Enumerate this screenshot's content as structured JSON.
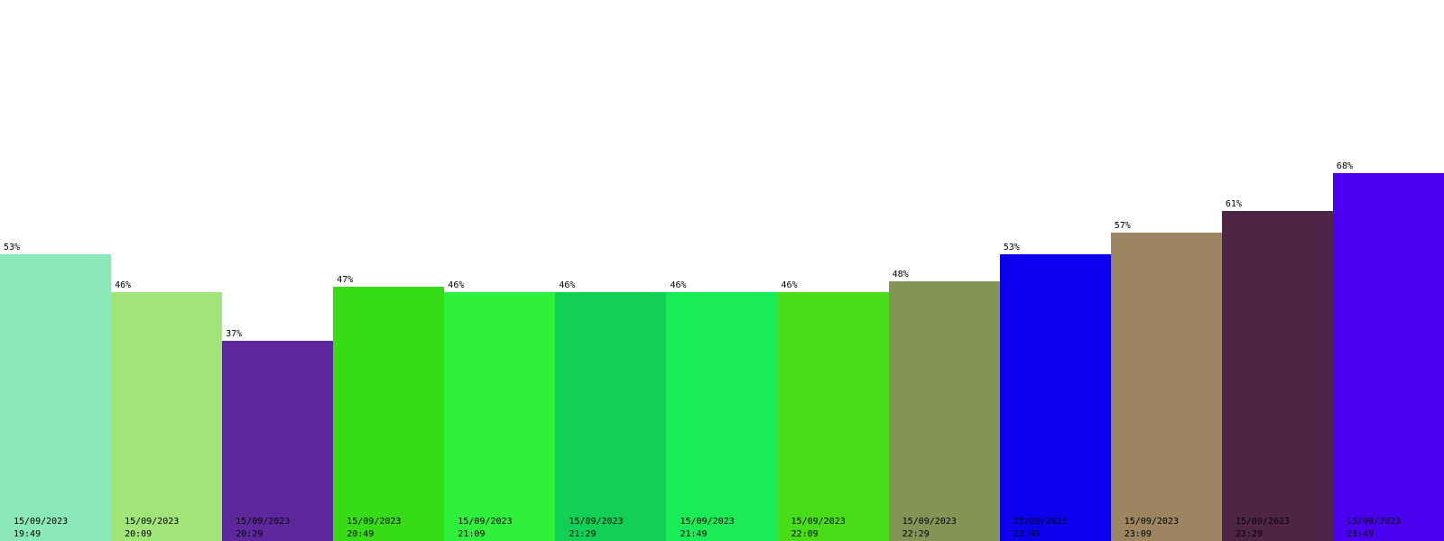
{
  "chart_data": {
    "type": "bar",
    "title": "",
    "xlabel": "",
    "ylabel": "",
    "ylim": [
      0,
      100
    ],
    "grid": false,
    "legend": "none",
    "categories": [
      {
        "date": "15/09/2023",
        "time": "19:49"
      },
      {
        "date": "15/09/2023",
        "time": "20:09"
      },
      {
        "date": "15/09/2023",
        "time": "20:29"
      },
      {
        "date": "15/09/2023",
        "time": "20:49"
      },
      {
        "date": "15/09/2023",
        "time": "21:09"
      },
      {
        "date": "15/09/2023",
        "time": "21:29"
      },
      {
        "date": "15/09/2023",
        "time": "21:49"
      },
      {
        "date": "15/09/2023",
        "time": "22:09"
      },
      {
        "date": "15/09/2023",
        "time": "22:29"
      },
      {
        "date": "15/09/2023",
        "time": "22:49"
      },
      {
        "date": "15/09/2023",
        "time": "23:09"
      },
      {
        "date": "15/09/2023",
        "time": "23:29"
      },
      {
        "date": "15/09/2023",
        "time": "23:49"
      }
    ],
    "values": [
      53,
      46,
      37,
      47,
      46,
      46,
      46,
      46,
      48,
      53,
      57,
      61,
      68
    ],
    "value_labels": [
      "53%",
      "46%",
      "37%",
      "47%",
      "46%",
      "46%",
      "46%",
      "46%",
      "48%",
      "53%",
      "57%",
      "61%",
      "68%"
    ],
    "colors": [
      "#8be8b8",
      "#a2e477",
      "#5f279e",
      "#36dc16",
      "#2ff03a",
      "#12d055",
      "#19ec55",
      "#48dc19",
      "#849455",
      "#0a00ee",
      "#9c8560",
      "#4f2546",
      "#4a00ef"
    ]
  }
}
